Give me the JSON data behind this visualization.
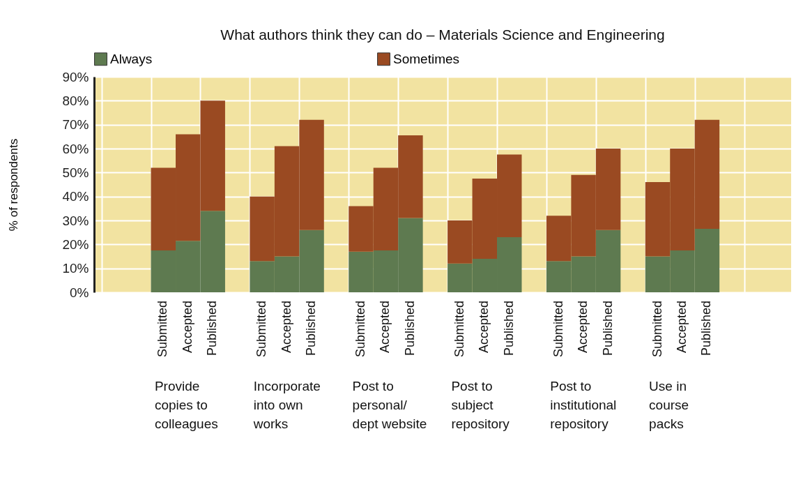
{
  "chart_data": {
    "type": "bar",
    "stacked": true,
    "title": "What authors think they can do – Materials Science and Engineering",
    "ylabel": "% of respondents",
    "categories": [
      "Submitted",
      "Accepted",
      "Published",
      "Submitted",
      "Accepted",
      "Published",
      "Submitted",
      "Accepted",
      "Published",
      "Submitted",
      "Accepted",
      "Published",
      "Submitted",
      "Accepted",
      "Published",
      "Submitted",
      "Accepted",
      "Published"
    ],
    "series": [
      {
        "name": "Always",
        "color": "#5e7a50",
        "values": [
          17.5,
          21.5,
          34,
          13,
          15,
          26,
          17,
          17.5,
          31,
          12,
          14,
          23,
          13,
          15,
          26,
          15,
          17.5,
          26.5
        ]
      },
      {
        "name": "Sometimes",
        "color": "#9a4a22",
        "values": [
          34.5,
          44.5,
          46,
          27,
          46,
          46,
          19,
          34.5,
          34.5,
          18,
          33.5,
          34.5,
          19,
          34,
          34,
          31,
          42.5,
          45.5
        ]
      }
    ],
    "annotations": [
      "Provide\ncopies to\ncolleagues",
      "Incorporate\ninto own\nworks",
      "Post to\npersonal/\ndept website",
      "Post to\nsubject\nrepository",
      "Post to\ninstitutional\nrepository",
      "Use in\ncourse\npacks"
    ],
    "ylim": [
      0,
      90
    ],
    "yticks": [
      {
        "value": 0,
        "label": "0%"
      },
      {
        "value": 10,
        "label": "10%"
      },
      {
        "value": 20,
        "label": "20%"
      },
      {
        "value": 30,
        "label": "30%"
      },
      {
        "value": 40,
        "label": "40%"
      },
      {
        "value": 50,
        "label": "50%"
      },
      {
        "value": 60,
        "label": "60%"
      },
      {
        "value": 70,
        "label": "70%"
      },
      {
        "value": 80,
        "label": "80%"
      },
      {
        "value": 90,
        "label": "90%"
      }
    ],
    "grid": true,
    "legend": "top"
  }
}
